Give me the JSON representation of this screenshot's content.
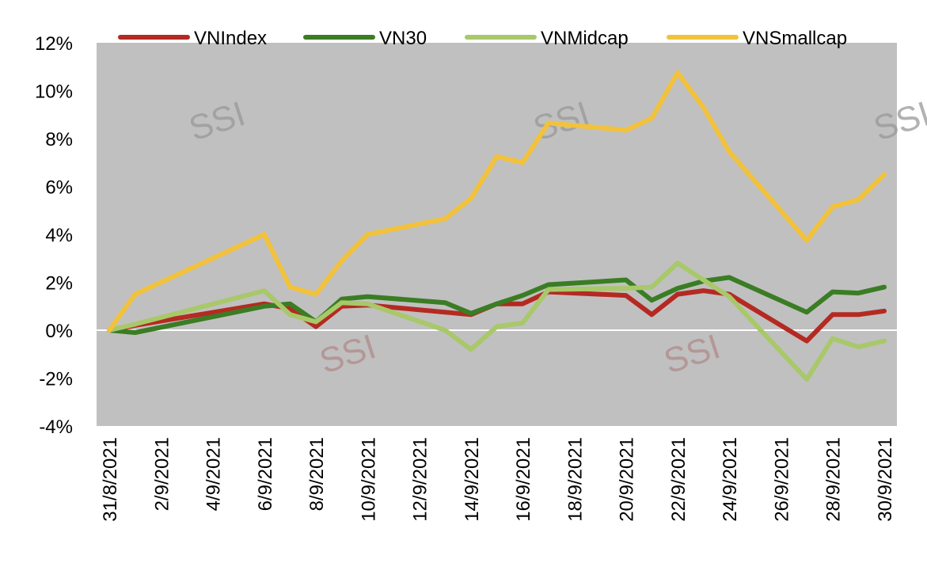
{
  "chart_data": {
    "type": "line",
    "title": "",
    "xlabel": "",
    "ylabel": "",
    "ylim": [
      -4,
      12
    ],
    "y_ticks": [
      -4,
      -2,
      0,
      2,
      4,
      6,
      8,
      10,
      12
    ],
    "y_tick_labels": [
      "-4%",
      "-2%",
      "0%",
      "2%",
      "4%",
      "6%",
      "8%",
      "10%",
      "12%"
    ],
    "x_tick_labels": [
      "31/8/2021",
      "2/9/2021",
      "4/9/2021",
      "6/9/2021",
      "8/9/2021",
      "10/9/2021",
      "12/9/2021",
      "14/9/2021",
      "16/9/2021",
      "18/9/2021",
      "20/9/2021",
      "22/9/2021",
      "24/9/2021",
      "26/9/2021",
      "28/9/2021",
      "30/9/2021"
    ],
    "x_tick_days": [
      0,
      2,
      4,
      6,
      8,
      10,
      12,
      14,
      16,
      18,
      20,
      22,
      24,
      26,
      28,
      30
    ],
    "x_range_days": [
      0,
      30
    ],
    "grid": false,
    "legend_position": "top",
    "plot_background": "#c0c0c0",
    "zero_line_color": "#ffffff",
    "series": [
      {
        "name": "VNIndex",
        "color": "#b42a22",
        "days": [
          0,
          1,
          6,
          7,
          8,
          9,
          10,
          14,
          15,
          16,
          17,
          20,
          21,
          22,
          23,
          24,
          27,
          28,
          29,
          30
        ],
        "values": [
          0,
          0.2,
          1.1,
          0.9,
          0.15,
          1.0,
          1.05,
          0.65,
          1.1,
          1.1,
          1.6,
          1.45,
          0.65,
          1.5,
          1.65,
          1.5,
          -0.45,
          0.65,
          0.65,
          0.8
        ]
      },
      {
        "name": "VN30",
        "color": "#3a7d24",
        "days": [
          0,
          1,
          6,
          7,
          8,
          9,
          10,
          13,
          14,
          15,
          16,
          17,
          20,
          21,
          22,
          23,
          24,
          27,
          28,
          29,
          30
        ],
        "values": [
          0,
          -0.1,
          1.0,
          1.1,
          0.35,
          1.3,
          1.4,
          1.15,
          0.7,
          1.1,
          1.45,
          1.9,
          2.1,
          1.25,
          1.75,
          2.05,
          2.2,
          0.75,
          1.6,
          1.55,
          1.8
        ]
      },
      {
        "name": "VNMidcap",
        "color": "#a8c86a",
        "days": [
          0,
          1,
          6,
          7,
          8,
          9,
          10,
          13,
          14,
          15,
          16,
          17,
          20,
          21,
          22,
          23,
          24,
          27,
          28,
          29,
          30
        ],
        "values": [
          0,
          0.25,
          1.65,
          0.65,
          0.35,
          1.15,
          1.1,
          0.0,
          -0.8,
          0.15,
          0.3,
          1.7,
          1.75,
          1.8,
          2.8,
          2.1,
          1.4,
          -2.05,
          -0.35,
          -0.7,
          -0.45
        ]
      },
      {
        "name": "VNSmallcap",
        "color": "#f2c23c",
        "days": [
          0,
          1,
          6,
          7,
          8,
          9,
          10,
          13,
          14,
          15,
          16,
          17,
          20,
          21,
          22,
          23,
          24,
          27,
          28,
          29,
          30
        ],
        "values": [
          0,
          1.5,
          4.0,
          1.8,
          1.5,
          2.9,
          4.0,
          4.65,
          5.5,
          7.25,
          7.0,
          8.65,
          8.35,
          8.85,
          10.75,
          9.3,
          7.45,
          3.75,
          5.15,
          5.45,
          6.5
        ]
      }
    ],
    "watermarks": [
      "SSI",
      "SSI",
      "SSI",
      "SSI",
      "SSI"
    ]
  }
}
